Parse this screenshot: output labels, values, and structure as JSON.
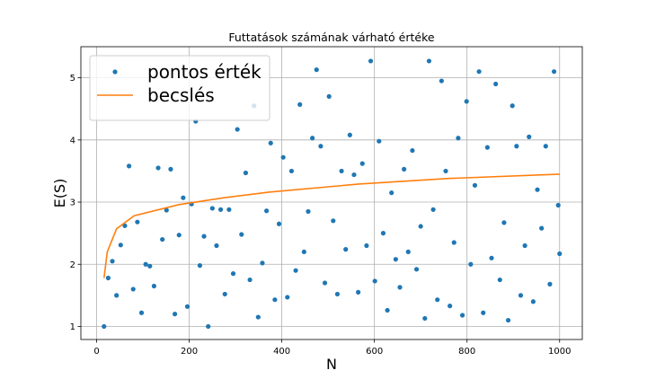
{
  "chart_data": {
    "type": "scatter",
    "title": "Futtatások számának várható értéke",
    "xlabel": "N",
    "ylabel": "E(S)",
    "xlim": [
      -34,
      1049
    ],
    "ylim": [
      0.79,
      5.5
    ],
    "xticks": [
      0,
      200,
      400,
      600,
      800,
      1000
    ],
    "yticks": [
      1,
      2,
      3,
      4,
      5
    ],
    "grid": true,
    "legend": "upper left",
    "series": [
      {
        "name": "pontos érték",
        "type": "scatter",
        "color": "#1f77b4",
        "x": [
          16,
          25,
          34,
          43,
          52,
          61,
          70,
          79,
          88,
          97,
          106,
          115,
          124,
          133,
          142,
          151,
          160,
          169,
          178,
          187,
          196,
          205,
          214,
          223,
          232,
          241,
          250,
          259,
          268,
          277,
          286,
          295,
          304,
          313,
          322,
          331,
          340,
          349,
          358,
          367,
          376,
          385,
          394,
          403,
          412,
          421,
          430,
          439,
          448,
          457,
          466,
          475,
          484,
          493,
          502,
          511,
          520,
          529,
          538,
          547,
          556,
          565,
          574,
          583,
          592,
          601,
          610,
          619,
          628,
          637,
          646,
          655,
          664,
          673,
          682,
          691,
          700,
          709,
          718,
          727,
          736,
          745,
          754,
          763,
          772,
          781,
          790,
          799,
          808,
          817,
          826,
          835,
          844,
          853,
          862,
          871,
          880,
          889,
          898,
          907,
          916,
          925,
          934,
          943,
          952,
          961,
          970,
          979,
          988,
          997,
          1000
        ],
        "values": [
          1.0,
          1.78,
          2.05,
          1.5,
          2.31,
          2.62,
          3.58,
          1.6,
          2.68,
          1.22,
          2.0,
          1.97,
          1.65,
          3.55,
          2.4,
          2.87,
          3.53,
          1.2,
          2.47,
          3.07,
          1.32,
          2.97,
          4.3,
          1.98,
          2.45,
          1.0,
          2.9,
          2.3,
          2.88,
          1.52,
          2.88,
          1.85,
          4.17,
          2.48,
          3.47,
          1.75,
          4.55,
          1.15,
          2.02,
          2.86,
          3.95,
          1.43,
          2.65,
          3.72,
          1.47,
          3.5,
          1.9,
          4.57,
          2.2,
          2.85,
          4.03,
          5.13,
          3.9,
          1.7,
          4.7,
          2.7,
          1.52,
          3.5,
          2.24,
          4.08,
          3.44,
          1.55,
          3.62,
          2.3,
          5.27,
          1.73,
          3.98,
          2.5,
          1.26,
          3.15,
          2.08,
          1.63,
          3.53,
          2.2,
          3.83,
          1.92,
          2.61,
          1.13,
          5.27,
          2.88,
          1.43,
          4.95,
          3.5,
          1.33,
          2.35,
          4.03,
          1.18,
          4.62,
          2.0,
          3.27,
          5.1,
          1.22,
          3.88,
          2.1,
          4.9,
          1.75,
          2.67,
          1.1,
          4.55,
          3.9,
          1.5,
          2.3,
          4.05,
          1.4,
          3.2,
          2.58,
          3.9,
          1.68,
          5.1,
          2.95,
          2.17
        ]
      },
      {
        "name": "becslés",
        "type": "line",
        "color": "#ff7f0e",
        "x": [
          16,
          23,
          43,
          81,
          178,
          275,
          372,
          566,
          760,
          1000
        ],
        "values": [
          1.78,
          2.2,
          2.57,
          2.78,
          2.96,
          3.07,
          3.16,
          3.29,
          3.38,
          3.45
        ]
      }
    ]
  }
}
